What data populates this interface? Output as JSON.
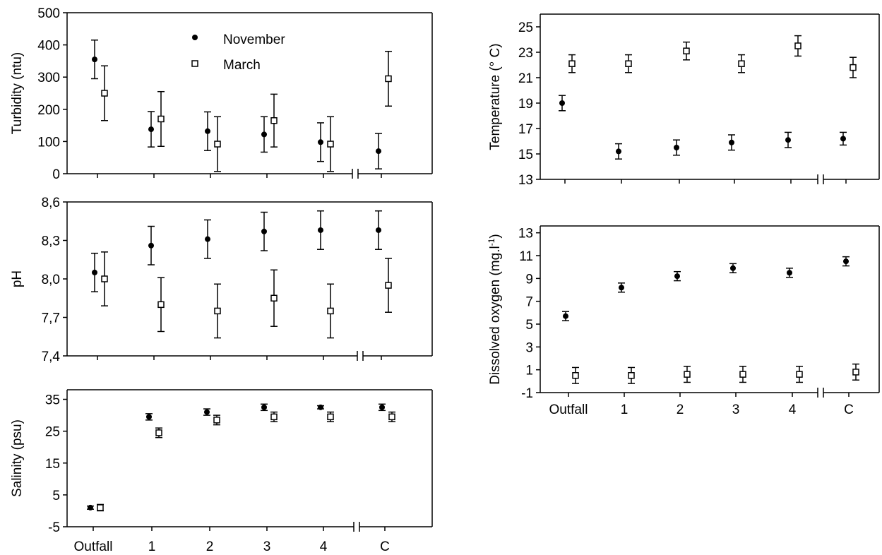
{
  "categories": [
    "Outfall",
    "1",
    "2",
    "3",
    "4",
    "C"
  ],
  "legend": {
    "november": "November",
    "march": "March"
  },
  "chart_data": [
    {
      "type": "scatter",
      "ylabel": "Turbidity (ntu)",
      "ylim": [
        0,
        500
      ],
      "yticks": [
        "0",
        "100",
        "200",
        "300",
        "400",
        "500"
      ],
      "series": [
        {
          "name": "November",
          "values": [
            355,
            138,
            132,
            122,
            98,
            70
          ],
          "error": [
            60,
            55,
            60,
            55,
            60,
            55
          ]
        },
        {
          "name": "March",
          "values": [
            250,
            170,
            92,
            165,
            92,
            295
          ],
          "error": [
            85,
            85,
            85,
            82,
            85,
            85
          ]
        }
      ]
    },
    {
      "type": "scatter",
      "ylabel": "pH",
      "ylim": [
        7.4,
        8.6
      ],
      "yticks": [
        "7,4",
        "7,7",
        "8,0",
        "8,3",
        "8,6"
      ],
      "series": [
        {
          "name": "November",
          "values": [
            8.05,
            8.26,
            8.31,
            8.37,
            8.38,
            8.38
          ],
          "error": [
            0.15,
            0.15,
            0.15,
            0.15,
            0.15,
            0.15
          ]
        },
        {
          "name": "March",
          "values": [
            8.0,
            7.8,
            7.75,
            7.85,
            7.75,
            7.95
          ],
          "error": [
            0.21,
            0.21,
            0.21,
            0.22,
            0.21,
            0.21
          ]
        }
      ]
    },
    {
      "type": "scatter",
      "ylabel": "Salinity (psu)",
      "ylim": [
        -5,
        38
      ],
      "yticks": [
        "-5",
        "5",
        "15",
        "25",
        "35"
      ],
      "xticks": [
        "Outfall",
        "1",
        "2",
        "3",
        "4",
        "C"
      ],
      "series": [
        {
          "name": "November",
          "values": [
            1,
            29.5,
            31,
            32.5,
            32.5,
            32.5
          ],
          "error": [
            0.5,
            1,
            1,
            1,
            0.5,
            1
          ]
        },
        {
          "name": "March",
          "values": [
            1,
            24.5,
            28.5,
            29.5,
            29.5,
            29.5
          ],
          "error": [
            1,
            1.5,
            1.5,
            1.5,
            1.5,
            1.5
          ]
        }
      ]
    },
    {
      "type": "scatter",
      "ylabel": "Temperature (° C)",
      "ylim": [
        13,
        26
      ],
      "yticks": [
        "13",
        "15",
        "17",
        "19",
        "21",
        "23",
        "25"
      ],
      "series": [
        {
          "name": "November",
          "values": [
            19,
            15.2,
            15.5,
            15.9,
            16.1,
            16.2
          ],
          "error": [
            0.6,
            0.6,
            0.6,
            0.6,
            0.6,
            0.5
          ]
        },
        {
          "name": "March",
          "values": [
            22.1,
            22.1,
            23.1,
            22.1,
            23.5,
            21.8
          ],
          "error": [
            0.7,
            0.7,
            0.7,
            0.7,
            0.8,
            0.8
          ]
        }
      ]
    },
    {
      "type": "scatter",
      "ylabel": "Dissolved oxygen (mg.l",
      "ylabel_sup": "-1",
      "ylabel_end": ")",
      "ylim": [
        -1,
        13.6
      ],
      "yticks": [
        "-1",
        "1",
        "3",
        "5",
        "7",
        "9",
        "11",
        "13"
      ],
      "xticks": [
        "Outfall",
        "1",
        "2",
        "3",
        "4",
        "C"
      ],
      "series": [
        {
          "name": "November",
          "values": [
            5.7,
            8.2,
            9.2,
            9.9,
            9.5,
            10.5
          ],
          "error": [
            0.4,
            0.4,
            0.4,
            0.4,
            0.4,
            0.4
          ]
        },
        {
          "name": "March",
          "values": [
            0.5,
            0.5,
            0.6,
            0.6,
            0.6,
            0.8
          ],
          "error": [
            0.7,
            0.7,
            0.7,
            0.7,
            0.7,
            0.7
          ]
        }
      ]
    }
  ]
}
